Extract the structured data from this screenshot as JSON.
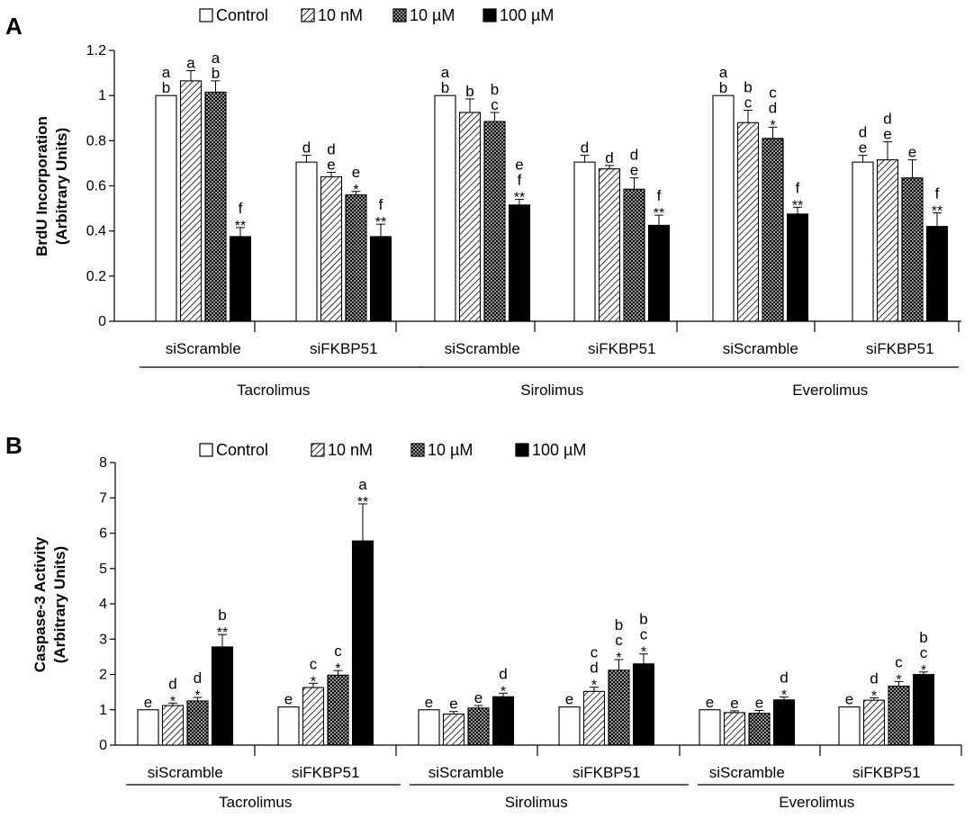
{
  "legend": [
    {
      "label": "Control",
      "pattern": "white"
    },
    {
      "label": "10 nM",
      "pattern": "hatch"
    },
    {
      "label": "10 µM",
      "pattern": "cross"
    },
    {
      "label": "100 µM",
      "pattern": "black"
    }
  ],
  "chart_data": [
    {
      "panel": "A",
      "type": "bar",
      "ylabel_line1": "BrdU Incorporation",
      "ylabel_line2": "(Arbitrary Units)",
      "ylim": [
        0,
        1.2
      ],
      "yticks": [
        "0",
        "0.2",
        "0.4",
        "0.6",
        "0.8",
        "1",
        "1.2"
      ],
      "groups": [
        "Tacrolimus",
        "Sirolimus",
        "Everolimus"
      ],
      "subgroups": [
        "siScramble",
        "siFKBP51"
      ],
      "legend_position": "top",
      "bars": [
        {
          "group": "Tacrolimus",
          "subgroup": "siScramble",
          "values": [
            1.0,
            1.065,
            1.015,
            0.375
          ],
          "errors": [
            0,
            0.045,
            0.05,
            0.04
          ],
          "letters": [
            "a\nb",
            "a",
            "a\nb",
            "f"
          ],
          "stars": [
            "",
            "",
            "",
            "**"
          ]
        },
        {
          "group": "Tacrolimus",
          "subgroup": "siFKBP51",
          "values": [
            0.705,
            0.64,
            0.56,
            0.375
          ],
          "errors": [
            0.03,
            0.02,
            0.015,
            0.055
          ],
          "letters": [
            "d",
            "d\ne",
            "e",
            "f"
          ],
          "stars": [
            "",
            "",
            "*",
            "**"
          ]
        },
        {
          "group": "Sirolimus",
          "subgroup": "siScramble",
          "values": [
            1.0,
            0.925,
            0.885,
            0.515
          ],
          "errors": [
            0,
            0.06,
            0.04,
            0.025
          ],
          "letters": [
            "a\nb",
            "b",
            "b\nc",
            "e\nf"
          ],
          "stars": [
            "",
            "",
            "",
            "**"
          ]
        },
        {
          "group": "Sirolimus",
          "subgroup": "siFKBP51",
          "values": [
            0.705,
            0.675,
            0.585,
            0.425
          ],
          "errors": [
            0.03,
            0.015,
            0.05,
            0.045
          ],
          "letters": [
            "d",
            "d",
            "d\ne",
            "f"
          ],
          "stars": [
            "",
            "",
            "",
            "**"
          ]
        },
        {
          "group": "Everolimus",
          "subgroup": "siScramble",
          "values": [
            1.0,
            0.88,
            0.81,
            0.475
          ],
          "errors": [
            0,
            0.055,
            0.05,
            0.03
          ],
          "letters": [
            "a\nb",
            "b\nc",
            "c\nd",
            "f"
          ],
          "stars": [
            "",
            "",
            "*",
            "**"
          ]
        },
        {
          "group": "Everolimus",
          "subgroup": "siFKBP51",
          "values": [
            0.705,
            0.715,
            0.635,
            0.42
          ],
          "errors": [
            0.03,
            0.08,
            0.08,
            0.06
          ],
          "letters": [
            "d\ne",
            "d\ne",
            "e",
            "f"
          ],
          "stars": [
            "",
            "",
            "",
            "**"
          ]
        }
      ]
    },
    {
      "panel": "B",
      "type": "bar",
      "ylabel_line1": "Caspase-3 Activity",
      "ylabel_line2": "(Arbitrary Units)",
      "ylim": [
        0,
        8
      ],
      "yticks": [
        "0",
        "1",
        "2",
        "3",
        "4",
        "5",
        "6",
        "7",
        "8"
      ],
      "groups": [
        "Tacrolimus",
        "Sirolimus",
        "Everolimus"
      ],
      "subgroups": [
        "siScramble",
        "siFKBP51"
      ],
      "legend_position": "top",
      "bars": [
        {
          "group": "Tacrolimus",
          "subgroup": "siScramble",
          "values": [
            1.0,
            1.12,
            1.25,
            2.78
          ],
          "errors": [
            0,
            0.07,
            0.1,
            0.35
          ],
          "letters": [
            "e",
            "d",
            "d",
            "b"
          ],
          "stars": [
            "",
            "*",
            "*",
            "**"
          ]
        },
        {
          "group": "Tacrolimus",
          "subgroup": "siFKBP51",
          "values": [
            1.08,
            1.63,
            1.98,
            5.78
          ],
          "errors": [
            0,
            0.12,
            0.13,
            1.05
          ],
          "letters": [
            "e",
            "c",
            "c",
            "a"
          ],
          "stars": [
            "",
            "*",
            "*",
            "**"
          ]
        },
        {
          "group": "Sirolimus",
          "subgroup": "siScramble",
          "values": [
            1.0,
            0.88,
            1.05,
            1.37
          ],
          "errors": [
            0,
            0.07,
            0.07,
            0.1
          ],
          "letters": [
            "e",
            "e",
            "e",
            "d"
          ],
          "stars": [
            "",
            "",
            "",
            "*"
          ]
        },
        {
          "group": "Sirolimus",
          "subgroup": "siFKBP51",
          "values": [
            1.08,
            1.52,
            2.12,
            2.3
          ],
          "errors": [
            0,
            0.12,
            0.3,
            0.28
          ],
          "letters": [
            "e",
            "c\nd",
            "b\nc",
            "b\nc"
          ],
          "stars": [
            "",
            "*",
            "*",
            "*"
          ]
        },
        {
          "group": "Everolimus",
          "subgroup": "siScramble",
          "values": [
            1.0,
            0.92,
            0.9,
            1.28
          ],
          "errors": [
            0,
            0.05,
            0.08,
            0.08
          ],
          "letters": [
            "e",
            "e",
            "e",
            "d"
          ],
          "stars": [
            "",
            "",
            "",
            "*"
          ]
        },
        {
          "group": "Everolimus",
          "subgroup": "siFKBP51",
          "values": [
            1.08,
            1.27,
            1.67,
            2.0
          ],
          "errors": [
            0,
            0.07,
            0.13,
            0.07
          ],
          "letters": [
            "e",
            "d",
            "c",
            "b\nc"
          ],
          "stars": [
            "",
            "*",
            "*",
            "*"
          ]
        }
      ]
    }
  ]
}
